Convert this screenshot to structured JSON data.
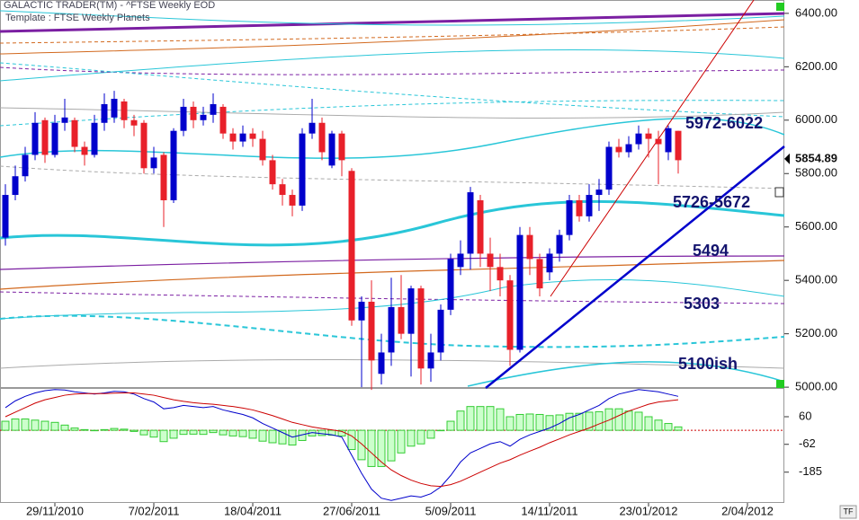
{
  "header": {
    "source": "GALACTIC TRADER(TM) - ^FTSE Weekly EOD",
    "template": "Template : FTSE Weekly Planets",
    "corner": "TF"
  },
  "chart_data": [
    {
      "type": "candlestick",
      "open": [
        5560,
        5720,
        5790,
        5870,
        6000,
        5870,
        5990,
        6000,
        5900,
        5870,
        5990,
        6010,
        6070,
        6000,
        5990,
        5820,
        5870,
        5700,
        5960,
        6050,
        6000,
        6020,
        6050,
        5950,
        5920,
        5950,
        5930,
        5850,
        5760,
        5720,
        5680,
        5950,
        5990,
        5830,
        5950,
        5810,
        5250,
        5320,
        5050,
        5130,
        5300,
        5200,
        5370,
        5070,
        5130,
        5290,
        5450,
        5500,
        5700,
        5500,
        5450,
        5400,
        5140,
        5570,
        5480,
        5430,
        5500,
        5570,
        5700,
        5640,
        5720,
        5740,
        5900,
        5880,
        5910,
        5950,
        5930,
        5880,
        5960
      ],
      "high": [
        5760,
        5830,
        5900,
        6030,
        6010,
        6020,
        6080,
        6010,
        5920,
        6020,
        6100,
        6110,
        6080,
        6020,
        6000,
        5900,
        5880,
        5970,
        6080,
        6070,
        6050,
        6100,
        6060,
        5970,
        5980,
        5970,
        5960,
        5870,
        5780,
        5740,
        5970,
        6080,
        6010,
        5960,
        5960,
        5820,
        5340,
        5400,
        5200,
        5410,
        5420,
        5380,
        5380,
        5200,
        5310,
        5500,
        5550,
        5750,
        5720,
        5560,
        5500,
        5420,
        5600,
        5600,
        5500,
        5520,
        5590,
        5720,
        5720,
        5760,
        5780,
        5920,
        5930,
        5940,
        5980,
        5970,
        5960,
        5980,
        5960
      ],
      "low": [
        5530,
        5700,
        5770,
        5850,
        5840,
        5860,
        5960,
        5880,
        5830,
        5860,
        5960,
        5990,
        5970,
        5940,
        5800,
        5800,
        5600,
        5690,
        5940,
        5970,
        5980,
        5990,
        5930,
        5890,
        5900,
        5900,
        5830,
        5740,
        5680,
        5640,
        5660,
        5930,
        5850,
        5820,
        5790,
        5230,
        5000,
        4990,
        5010,
        5080,
        5180,
        5040,
        5010,
        5020,
        5100,
        5270,
        5420,
        5440,
        5450,
        5360,
        5340,
        5080,
        5130,
        5420,
        5340,
        5400,
        5470,
        5550,
        5620,
        5620,
        5660,
        5720,
        5860,
        5860,
        5890,
        5860,
        5760,
        5850,
        5800
      ],
      "close": [
        5720,
        5790,
        5870,
        5990,
        5870,
        5990,
        6010,
        5900,
        5870,
        5990,
        6060,
        6080,
        6000,
        5980,
        5820,
        5860,
        5700,
        5960,
        6050,
        6000,
        6020,
        6060,
        5950,
        5920,
        5950,
        5930,
        5850,
        5760,
        5720,
        5680,
        5950,
        5990,
        5880,
        5950,
        5850,
        5250,
        5320,
        5100,
        5130,
        5300,
        5200,
        5370,
        5070,
        5130,
        5290,
        5480,
        5500,
        5730,
        5500,
        5450,
        5400,
        5140,
        5570,
        5480,
        5370,
        5500,
        5570,
        5700,
        5640,
        5720,
        5740,
        5900,
        5880,
        5910,
        5950,
        5930,
        5910,
        5970,
        5850
      ],
      "up_color": "#0000cc",
      "down_color": "#e8202a",
      "ylim": [
        4997,
        6450
      ],
      "yticks": [
        {
          "value": 5000,
          "label": "5000.00"
        },
        {
          "value": 5200,
          "label": "5200.00"
        },
        {
          "value": 5400,
          "label": "5400.00"
        },
        {
          "value": 5600,
          "label": "5600.00"
        },
        {
          "value": 5800,
          "label": "5800.00"
        },
        {
          "value": 6000,
          "label": "6000.00"
        },
        {
          "value": 6200,
          "label": "6200.00"
        },
        {
          "value": 6400,
          "label": "6400.00"
        }
      ],
      "last_price": 5854.89,
      "annotations": [
        "5972-6022",
        "5726-5672",
        "5494",
        "5303",
        "5100ish"
      ]
    },
    {
      "type": "macd",
      "series": [
        {
          "color": "#0000cc",
          "values": [
            100,
            130,
            150,
            165,
            175,
            180,
            178,
            170,
            165,
            160,
            165,
            172,
            170,
            160,
            140,
            125,
            95,
            100,
            110,
            105,
            100,
            105,
            90,
            80,
            70,
            55,
            30,
            10,
            -10,
            -30,
            -20,
            -10,
            -15,
            -20,
            -30,
            -110,
            -190,
            -260,
            -300,
            -310,
            -300,
            -290,
            -295,
            -280,
            -250,
            -200,
            -140,
            -100,
            -80,
            -60,
            -50,
            -70,
            -40,
            -20,
            -5,
            10,
            30,
            55,
            70,
            90,
            110,
            140,
            160,
            170,
            180,
            175,
            170,
            160,
            150
          ]
        },
        {
          "color": "#cc0000",
          "values": [
            60,
            80,
            100,
            120,
            135,
            145,
            155,
            160,
            162,
            162,
            162,
            164,
            165,
            165,
            160,
            155,
            145,
            135,
            128,
            122,
            118,
            115,
            110,
            105,
            98,
            90,
            78,
            65,
            50,
            35,
            25,
            15,
            8,
            2,
            -5,
            -25,
            -60,
            -100,
            -140,
            -175,
            -200,
            -220,
            -235,
            -245,
            -248,
            -240,
            -225,
            -205,
            -185,
            -165,
            -145,
            -130,
            -110,
            -92,
            -75,
            -55,
            -38,
            -20,
            -5,
            10,
            28,
            45,
            65,
            85,
            100,
            115,
            125,
            130,
            135
          ]
        }
      ],
      "bars": {
        "color": "#33cc33",
        "values": [
          40,
          50,
          50,
          45,
          40,
          35,
          23,
          10,
          3,
          -2,
          3,
          8,
          5,
          -5,
          -20,
          -30,
          -50,
          -35,
          -18,
          -17,
          -18,
          -10,
          -20,
          -25,
          -28,
          -35,
          -48,
          -55,
          -60,
          -65,
          -45,
          -25,
          -23,
          -22,
          -25,
          -85,
          -130,
          -160,
          -160,
          -135,
          -100,
          -70,
          -60,
          -35,
          -2,
          40,
          85,
          105,
          105,
          105,
          95,
          60,
          70,
          72,
          70,
          65,
          68,
          75,
          75,
          80,
          82,
          95,
          95,
          85,
          80,
          60,
          45,
          30,
          15
        ]
      },
      "ylim": [
        -321,
        187
      ],
      "yticks": [
        60,
        -62,
        -185
      ],
      "xlim": [
        -0.5,
        78.5
      ],
      "xticks": [
        {
          "value": 5,
          "label": "29/11/2010"
        },
        {
          "value": 15,
          "label": "7/02/2011"
        },
        {
          "value": 25,
          "label": "18/04/2011"
        },
        {
          "value": 35,
          "label": "27/06/2011"
        },
        {
          "value": 45,
          "label": "5/09/2011"
        },
        {
          "value": 55,
          "label": "14/11/2011"
        },
        {
          "value": 65,
          "label": "23/01/2012"
        },
        {
          "value": 75,
          "label": "2/04/2012"
        }
      ]
    }
  ]
}
